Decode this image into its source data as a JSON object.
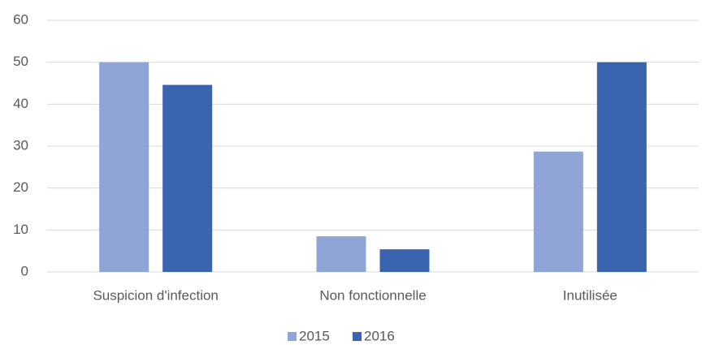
{
  "chart_data": {
    "type": "bar",
    "categories": [
      "Suspicion d'infection",
      "Non fonctionnelle",
      "Inutilisée"
    ],
    "series": [
      {
        "name": "2015",
        "color": "#8fa5d5",
        "values": [
          50,
          8.5,
          28.7
        ]
      },
      {
        "name": "2016",
        "color": "#3b64ae",
        "values": [
          44.6,
          5.4,
          50
        ]
      }
    ],
    "ylim": [
      0,
      60
    ],
    "yticks": [
      0,
      10,
      20,
      30,
      40,
      50,
      60
    ],
    "grid": true,
    "legend": "bottom"
  }
}
